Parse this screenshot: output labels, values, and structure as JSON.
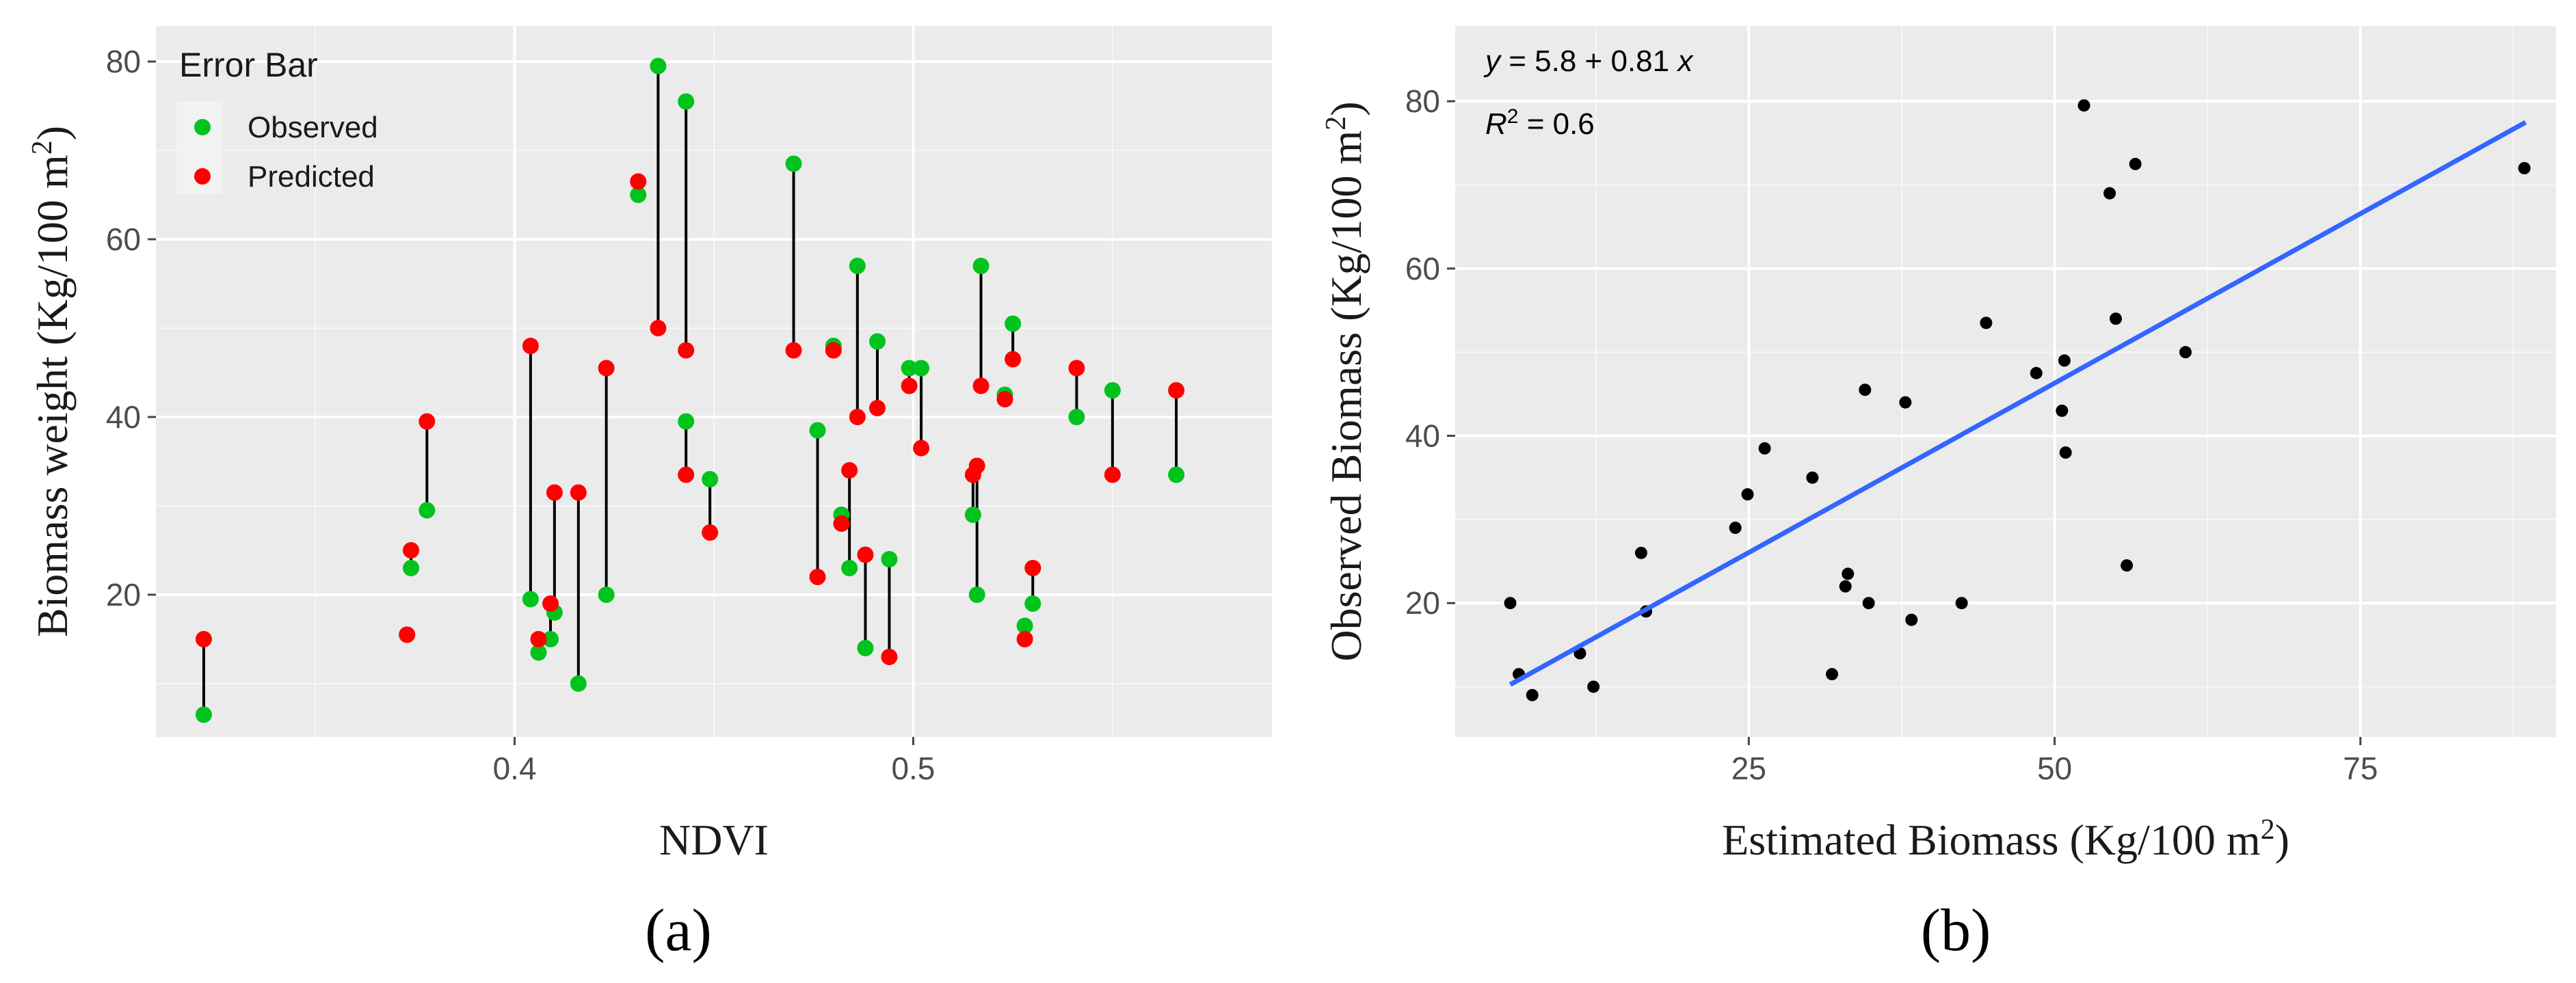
{
  "chart_data": [
    {
      "type": "scatter",
      "panel_label": "(a)",
      "xlabel": "NDVI",
      "ylabel": "Biomass weight (Kg/100 m",
      "ylabel_sup": "2",
      "ylabel_close": ")",
      "xlim": [
        0.31,
        0.59
      ],
      "ylim": [
        4,
        84
      ],
      "xticks": [
        0.4,
        0.5
      ],
      "xtick_labels": [
        "0.4",
        "0.5"
      ],
      "xminor": [
        0.35,
        0.45,
        0.55
      ],
      "yticks": [
        20,
        40,
        60,
        80
      ],
      "ytick_labels": [
        "20",
        "40",
        "60",
        "80"
      ],
      "yminor": [
        10,
        30,
        50,
        70
      ],
      "legend": {
        "title": "Error Bar",
        "position": "top-left",
        "entries": [
          {
            "label": "Observed",
            "color": "#00c31e"
          },
          {
            "label": "Predicted",
            "color": "#ff0000"
          }
        ]
      },
      "colors": {
        "observed": "#00c31e",
        "predicted": "#ff0000",
        "bar": "#000000"
      },
      "series": [
        {
          "name": "Observed",
          "x": [
            0.322,
            0.374,
            0.378,
            0.373,
            0.404,
            0.406,
            0.409,
            0.41,
            0.416,
            0.423,
            0.431,
            0.436,
            0.443,
            0.443,
            0.449,
            0.47,
            0.476,
            0.48,
            0.482,
            0.484,
            0.486,
            0.488,
            0.491,
            0.494,
            0.499,
            0.502,
            0.515,
            0.516,
            0.517,
            0.523,
            0.525,
            0.528,
            0.53,
            0.541,
            0.55,
            0.566
          ],
          "y": [
            6.5,
            23,
            29.5,
            15.5,
            19.5,
            13.5,
            15,
            18,
            10,
            20,
            65,
            79.5,
            39.5,
            75.5,
            33,
            68.5,
            38.5,
            48,
            29,
            23,
            57,
            14,
            48.5,
            24,
            45.5,
            45.5,
            29,
            20,
            57,
            42.5,
            50.5,
            16.5,
            19,
            40,
            43,
            33.5
          ]
        },
        {
          "name": "Predicted",
          "x": [
            0.322,
            0.374,
            0.378,
            0.373,
            0.404,
            0.406,
            0.409,
            0.41,
            0.416,
            0.423,
            0.431,
            0.436,
            0.443,
            0.443,
            0.449,
            0.47,
            0.476,
            0.48,
            0.482,
            0.484,
            0.486,
            0.488,
            0.491,
            0.494,
            0.499,
            0.502,
            0.515,
            0.516,
            0.517,
            0.523,
            0.525,
            0.528,
            0.53,
            0.541,
            0.55,
            0.566
          ],
          "y": [
            15,
            25,
            39.5,
            15.5,
            48,
            15,
            19,
            31.5,
            31.5,
            45.5,
            66.5,
            50,
            33.5,
            47.5,
            27,
            47.5,
            22,
            47.5,
            28,
            34,
            40,
            24.5,
            41,
            13,
            43.5,
            36.5,
            33.5,
            34.5,
            43.5,
            42,
            46.5,
            15,
            23,
            45.5,
            33.5,
            43
          ]
        }
      ]
    },
    {
      "type": "scatter",
      "panel_label": "(b)",
      "xlabel": "Estimated Biomass (Kg/100 m",
      "xlabel_sup": "2",
      "xlabel_close": ")",
      "ylabel": "Observed Biomass (Kg/100 m",
      "ylabel_sup": "2",
      "ylabel_close": ")",
      "xlim": [
        1,
        91
      ],
      "ylim": [
        4,
        89
      ],
      "xticks": [
        25,
        50,
        75
      ],
      "xtick_labels": [
        "25",
        "50",
        "75"
      ],
      "xminor": [
        12.5,
        37.5,
        62.5,
        87.5
      ],
      "yticks": [
        20,
        40,
        60,
        80
      ],
      "ytick_labels": [
        "20",
        "40",
        "60",
        "80"
      ],
      "yminor": [
        10,
        30,
        50,
        70
      ],
      "equation": {
        "prefix": "y",
        "body": " = 5.8 + 0.81 ",
        "suffix": "x"
      },
      "r2": {
        "label": "R",
        "sup": "2",
        "value": " = 0.6"
      },
      "fit_line": {
        "intercept": 5.8,
        "slope": 0.81,
        "x_range": [
          5.5,
          88.5
        ],
        "color": "#3366ff"
      },
      "point_color": "#000000",
      "points": {
        "x": [
          5.5,
          6.2,
          7.3,
          11.2,
          12.3,
          16.2,
          16.6,
          23.9,
          24.9,
          26.3,
          30.2,
          31.8,
          32.9,
          33.1,
          34.5,
          34.8,
          37.8,
          38.3,
          42.4,
          44.4,
          48.5,
          50.6,
          50.8,
          50.9,
          52.4,
          54.5,
          55.0,
          55.9,
          56.6,
          60.7,
          88.4
        ],
        "y": [
          20,
          11.5,
          9,
          14,
          10,
          26,
          19,
          29,
          33,
          38.5,
          35,
          11.5,
          22,
          23.5,
          45.5,
          20,
          44,
          18,
          20,
          53.5,
          47.5,
          43,
          49,
          38,
          79.5,
          69,
          54,
          24.5,
          72.5,
          50,
          72
        ]
      }
    }
  ]
}
